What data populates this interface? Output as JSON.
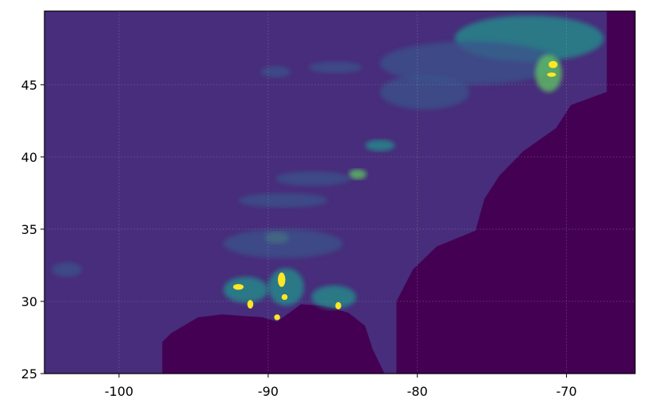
{
  "chart_data": {
    "type": "heatmap",
    "title": "",
    "xlabel": "",
    "ylabel": "",
    "xlim": [
      -105,
      -65.4
    ],
    "ylim": [
      25,
      50.1
    ],
    "x_ticks": [
      -100,
      -90,
      -80,
      -70
    ],
    "y_ticks": [
      25,
      30,
      35,
      40,
      45
    ],
    "x_tick_labels": [
      "-100",
      "-90",
      "-80",
      "-70"
    ],
    "y_tick_labels": [
      "25",
      "30",
      "35",
      "40",
      "45"
    ],
    "grid": true,
    "colormap": "viridis",
    "colors": {
      "ocean": "#440154",
      "land": "#472d7b",
      "low": "#3b528b",
      "mid": "#21918c",
      "high": "#5ec962",
      "max": "#fde725"
    },
    "ocean_outline_gulf": [
      [
        -97.1,
        25
      ],
      [
        -97.1,
        27.2
      ],
      [
        -96.5,
        27.8
      ],
      [
        -94.7,
        28.9
      ],
      [
        -93.1,
        29.1
      ],
      [
        -90.4,
        28.9
      ],
      [
        -89.4,
        28.6
      ],
      [
        -87.8,
        29.8
      ],
      [
        -86.2,
        29.7
      ],
      [
        -84.6,
        29.2
      ],
      [
        -83.5,
        28.3
      ],
      [
        -83.0,
        26.7
      ],
      [
        -82.2,
        25
      ]
    ],
    "ocean_outline_atlantic": [
      [
        -81.4,
        25
      ],
      [
        -81.4,
        30.0
      ],
      [
        -80.3,
        32.2
      ],
      [
        -78.7,
        33.8
      ],
      [
        -76.1,
        34.9
      ],
      [
        -75.5,
        37.1
      ],
      [
        -74.5,
        38.7
      ],
      [
        -72.9,
        40.4
      ],
      [
        -70.7,
        42.0
      ],
      [
        -69.7,
        43.6
      ],
      [
        -67.3,
        44.5
      ],
      [
        -67.3,
        50.1
      ],
      [
        -65.4,
        50.1
      ],
      [
        -65.4,
        25
      ]
    ],
    "features": [
      {
        "lon": -72.5,
        "lat": 48.2,
        "rx": 5,
        "ry": 1.6,
        "level": "mid"
      },
      {
        "lon": -76.5,
        "lat": 46.5,
        "rx": 6,
        "ry": 1.5,
        "level": "low"
      },
      {
        "lon": -79.5,
        "lat": 44.5,
        "rx": 3,
        "ry": 1.2,
        "level": "low"
      },
      {
        "lon": -71.2,
        "lat": 45.8,
        "rx": 0.9,
        "ry": 1.3,
        "level": "high"
      },
      {
        "lon": -70.9,
        "lat": 46.4,
        "rx": 0.3,
        "ry": 0.25,
        "level": "max"
      },
      {
        "lon": -71.0,
        "lat": 45.7,
        "rx": 0.3,
        "ry": 0.15,
        "level": "max"
      },
      {
        "lon": -85.5,
        "lat": 46.2,
        "rx": 1.8,
        "ry": 0.4,
        "level": "low"
      },
      {
        "lon": -89.5,
        "lat": 45.9,
        "rx": 1.0,
        "ry": 0.4,
        "level": "low"
      },
      {
        "lon": -82.5,
        "lat": 40.8,
        "rx": 1.0,
        "ry": 0.4,
        "level": "mid"
      },
      {
        "lon": -84.0,
        "lat": 38.8,
        "rx": 0.6,
        "ry": 0.35,
        "level": "high"
      },
      {
        "lon": -87.0,
        "lat": 38.5,
        "rx": 2.5,
        "ry": 0.5,
        "level": "low"
      },
      {
        "lon": -89.0,
        "lat": 37.0,
        "rx": 3.0,
        "ry": 0.5,
        "level": "low"
      },
      {
        "lon": -89.4,
        "lat": 34.4,
        "rx": 0.8,
        "ry": 0.4,
        "level": "high"
      },
      {
        "lon": -89.0,
        "lat": 34.0,
        "rx": 4.0,
        "ry": 1.0,
        "level": "low"
      },
      {
        "lon": -103.5,
        "lat": 32.2,
        "rx": 1.0,
        "ry": 0.5,
        "level": "low"
      },
      {
        "lon": -91.5,
        "lat": 30.8,
        "rx": 1.5,
        "ry": 0.9,
        "level": "mid"
      },
      {
        "lon": -88.8,
        "lat": 31.0,
        "rx": 1.2,
        "ry": 1.3,
        "level": "mid"
      },
      {
        "lon": -85.6,
        "lat": 30.3,
        "rx": 1.5,
        "ry": 0.8,
        "level": "mid"
      },
      {
        "lon": -92.0,
        "lat": 31.0,
        "rx": 0.35,
        "ry": 0.2,
        "level": "max"
      },
      {
        "lon": -91.2,
        "lat": 29.8,
        "rx": 0.2,
        "ry": 0.3,
        "level": "max"
      },
      {
        "lon": -89.1,
        "lat": 31.5,
        "rx": 0.25,
        "ry": 0.5,
        "level": "max"
      },
      {
        "lon": -88.9,
        "lat": 30.3,
        "rx": 0.2,
        "ry": 0.2,
        "level": "max"
      },
      {
        "lon": -89.4,
        "lat": 28.9,
        "rx": 0.2,
        "ry": 0.2,
        "level": "max"
      },
      {
        "lon": -85.3,
        "lat": 29.7,
        "rx": 0.2,
        "ry": 0.25,
        "level": "max"
      }
    ]
  }
}
